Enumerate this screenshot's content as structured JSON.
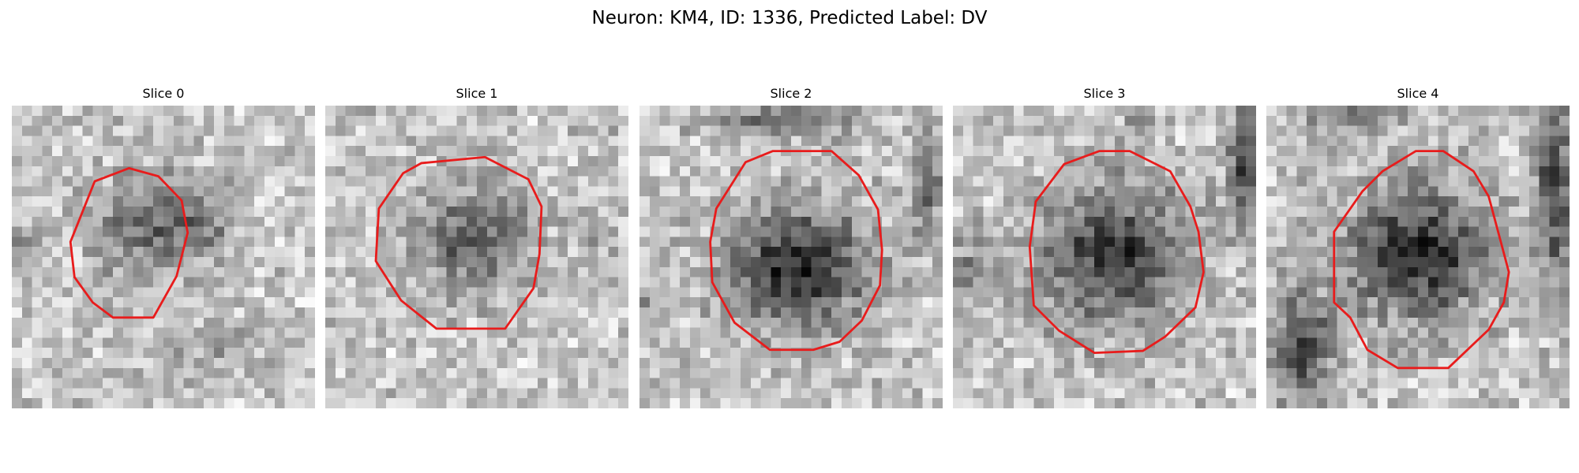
{
  "figure": {
    "title": "Neuron: KM4, ID: 1336, Predicted Label: DV"
  },
  "colors": {
    "contour": "#e81c1c",
    "background": "#ffffff"
  },
  "image_grid_size": 30,
  "panels": [
    {
      "label": "Slice 0",
      "blob": {
        "cx": 13.5,
        "cy": 12.0,
        "rx": 6.5,
        "ry": 5.5,
        "darkness": 0.38
      },
      "extra_dark": [
        [
          19.5,
          12.0,
          3.0,
          3.0,
          0.2
        ],
        [
          0.5,
          14.0,
          1.5,
          3.0,
          0.35
        ],
        [
          21.0,
          24.0,
          8.0,
          3.0,
          0.12
        ]
      ],
      "contour": [
        [
          8.2,
          7.5
        ],
        [
          11.6,
          6.2
        ],
        [
          14.5,
          7.0
        ],
        [
          16.8,
          9.4
        ],
        [
          17.4,
          12.6
        ],
        [
          16.3,
          16.9
        ],
        [
          14.0,
          21.0
        ],
        [
          10.0,
          21.0
        ],
        [
          8.0,
          19.5
        ],
        [
          6.2,
          17.0
        ],
        [
          5.8,
          13.5
        ]
      ]
    },
    {
      "label": "Slice 1",
      "blob": {
        "cx": 14.5,
        "cy": 13.0,
        "rx": 6.8,
        "ry": 6.0,
        "darkness": 0.4
      },
      "extra_dark": [
        [
          14.5,
          4.5,
          2.5,
          1.5,
          0.15
        ],
        [
          27.0,
          12.0,
          3.0,
          4.0,
          0.08
        ]
      ],
      "contour": [
        [
          9.5,
          5.7
        ],
        [
          15.8,
          5.1
        ],
        [
          20.1,
          7.3
        ],
        [
          21.4,
          10.0
        ],
        [
          21.2,
          14.7
        ],
        [
          20.6,
          18.1
        ],
        [
          17.8,
          22.1
        ],
        [
          11.0,
          22.1
        ],
        [
          7.5,
          19.3
        ],
        [
          5.0,
          15.4
        ],
        [
          5.3,
          10.2
        ],
        [
          7.7,
          6.7
        ]
      ]
    },
    {
      "label": "Slice 2",
      "blob": {
        "cx": 15.5,
        "cy": 16.0,
        "rx": 8.0,
        "ry": 6.8,
        "darkness": 0.62
      },
      "extra_dark": [
        [
          14.0,
          1.5,
          8.0,
          2.0,
          0.3
        ],
        [
          28.5,
          8.0,
          1.5,
          6.0,
          0.35
        ],
        [
          1.5,
          20.0,
          2.0,
          4.0,
          0.2
        ]
      ],
      "contour": [
        [
          10.5,
          5.6
        ],
        [
          13.2,
          4.5
        ],
        [
          19.0,
          4.5
        ],
        [
          21.7,
          6.9
        ],
        [
          23.6,
          10.3
        ],
        [
          24.0,
          14.3
        ],
        [
          23.8,
          17.8
        ],
        [
          22.0,
          21.3
        ],
        [
          19.8,
          23.4
        ],
        [
          17.2,
          24.2
        ],
        [
          12.9,
          24.2
        ],
        [
          9.4,
          21.5
        ],
        [
          7.2,
          17.5
        ],
        [
          7.0,
          13.5
        ],
        [
          7.6,
          10.2
        ]
      ]
    },
    {
      "label": "Slice 3",
      "blob": {
        "cx": 16.0,
        "cy": 15.0,
        "rx": 8.5,
        "ry": 8.0,
        "darkness": 0.55
      },
      "extra_dark": [
        [
          29.0,
          6.0,
          2.0,
          6.0,
          0.5
        ],
        [
          1.0,
          16.0,
          3.0,
          5.0,
          0.2
        ],
        [
          18.0,
          2.0,
          2.0,
          2.0,
          0.15
        ]
      ],
      "contour": [
        [
          11.0,
          5.8
        ],
        [
          14.5,
          4.5
        ],
        [
          17.5,
          4.5
        ],
        [
          21.5,
          6.5
        ],
        [
          23.5,
          10.0
        ],
        [
          24.3,
          12.5
        ],
        [
          24.8,
          16.5
        ],
        [
          24.0,
          20.0
        ],
        [
          21.0,
          22.9
        ],
        [
          18.8,
          24.3
        ],
        [
          14.0,
          24.5
        ],
        [
          10.5,
          22.3
        ],
        [
          8.0,
          19.8
        ],
        [
          7.6,
          14.0
        ],
        [
          8.2,
          9.5
        ]
      ]
    },
    {
      "label": "Slice 4",
      "blob": {
        "cx": 15.0,
        "cy": 14.5,
        "rx": 8.2,
        "ry": 7.8,
        "darkness": 0.6
      },
      "extra_dark": [
        [
          3.5,
          24.0,
          3.0,
          6.0,
          0.5
        ],
        [
          28.5,
          8.0,
          2.0,
          10.0,
          0.55
        ],
        [
          9.0,
          1.0,
          6.0,
          1.5,
          0.3
        ]
      ],
      "contour": [
        [
          9.5,
          8.5
        ],
        [
          11.5,
          6.5
        ],
        [
          14.8,
          4.5
        ],
        [
          17.5,
          4.5
        ],
        [
          20.5,
          6.5
        ],
        [
          22.0,
          9.0
        ],
        [
          23.2,
          13.5
        ],
        [
          24.0,
          16.5
        ],
        [
          23.5,
          19.5
        ],
        [
          22.0,
          22.2
        ],
        [
          18.0,
          26.0
        ],
        [
          13.0,
          26.0
        ],
        [
          10.0,
          24.2
        ],
        [
          8.3,
          21.0
        ],
        [
          6.7,
          19.5
        ],
        [
          6.7,
          12.5
        ]
      ]
    }
  ]
}
